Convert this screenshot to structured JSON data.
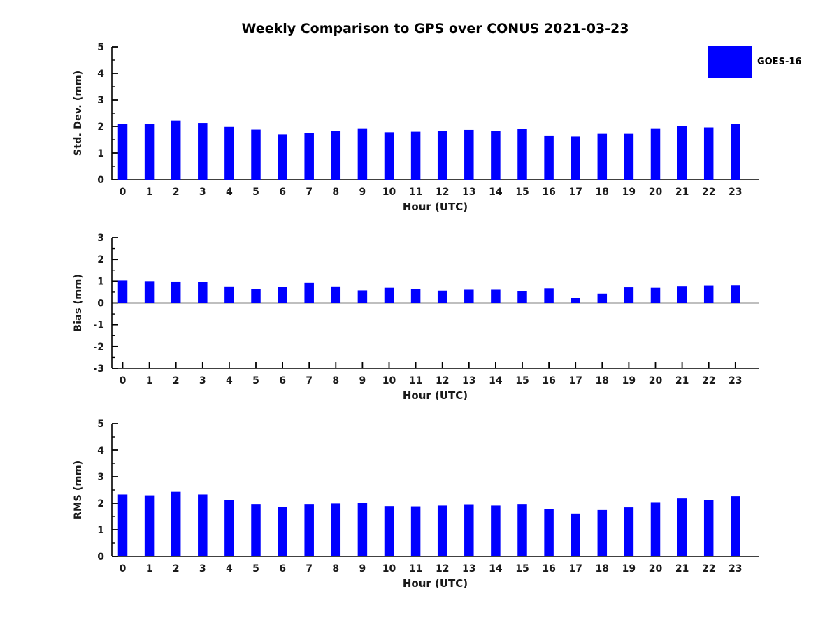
{
  "page": {
    "title": "Weekly Comparison to GPS over CONUS 2021-03-23"
  },
  "legend": {
    "label": "GOES-16",
    "color": "#0000FF"
  },
  "colors": {
    "bar": "#0000FF",
    "axis": "#000000",
    "text": "#1a1a1a"
  },
  "chart_data": [
    {
      "id": "stddev",
      "type": "bar",
      "series_name": "GOES-16",
      "ylabel": "Std. Dev. (mm)",
      "xlabel": "Hour (UTC)",
      "ylim": [
        0,
        5
      ],
      "yticks": [
        0,
        1,
        2,
        3,
        4,
        5
      ],
      "categories": [
        "0",
        "1",
        "2",
        "3",
        "4",
        "5",
        "6",
        "7",
        "8",
        "9",
        "10",
        "11",
        "12",
        "13",
        "14",
        "15",
        "16",
        "17",
        "18",
        "19",
        "20",
        "21",
        "22",
        "23"
      ],
      "values": [
        2.08,
        2.08,
        2.22,
        2.13,
        1.98,
        1.88,
        1.7,
        1.75,
        1.82,
        1.93,
        1.78,
        1.8,
        1.82,
        1.87,
        1.82,
        1.9,
        1.66,
        1.62,
        1.72,
        1.72,
        1.93,
        2.02,
        1.96,
        2.1
      ]
    },
    {
      "id": "bias",
      "type": "bar",
      "series_name": "GOES-16",
      "ylabel": "Bias (mm)",
      "xlabel": "Hour (UTC)",
      "ylim": [
        -3,
        3
      ],
      "yticks": [
        -3,
        -2,
        -1,
        0,
        1,
        2,
        3
      ],
      "zero_line": true,
      "categories": [
        "0",
        "1",
        "2",
        "3",
        "4",
        "5",
        "6",
        "7",
        "8",
        "9",
        "10",
        "11",
        "12",
        "13",
        "14",
        "15",
        "16",
        "17",
        "18",
        "19",
        "20",
        "21",
        "22",
        "23"
      ],
      "values": [
        1.03,
        1.0,
        0.98,
        0.97,
        0.76,
        0.64,
        0.73,
        0.92,
        0.76,
        0.58,
        0.7,
        0.63,
        0.57,
        0.61,
        0.61,
        0.55,
        0.68,
        0.21,
        0.44,
        0.72,
        0.7,
        0.78,
        0.8,
        0.81
      ]
    },
    {
      "id": "rms",
      "type": "bar",
      "series_name": "GOES-16",
      "ylabel": "RMS (mm)",
      "xlabel": "Hour (UTC)",
      "ylim": [
        0,
        5
      ],
      "yticks": [
        0,
        1,
        2,
        3,
        4,
        5
      ],
      "categories": [
        "0",
        "1",
        "2",
        "3",
        "4",
        "5",
        "6",
        "7",
        "8",
        "9",
        "10",
        "11",
        "12",
        "13",
        "14",
        "15",
        "16",
        "17",
        "18",
        "19",
        "20",
        "21",
        "22",
        "23"
      ],
      "values": [
        2.33,
        2.3,
        2.43,
        2.33,
        2.12,
        1.97,
        1.86,
        1.97,
        1.99,
        2.01,
        1.89,
        1.88,
        1.91,
        1.96,
        1.91,
        1.97,
        1.77,
        1.61,
        1.74,
        1.84,
        2.04,
        2.18,
        2.11,
        2.26
      ]
    }
  ]
}
